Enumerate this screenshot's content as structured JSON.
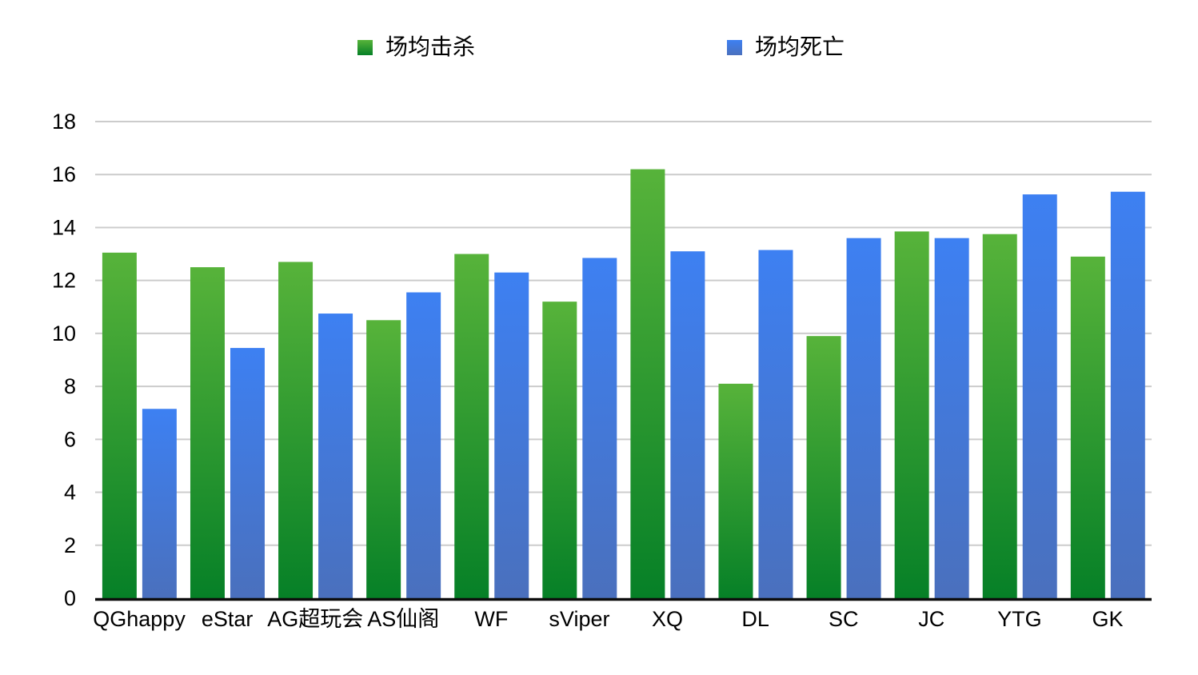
{
  "chart_data": {
    "type": "bar",
    "title": "",
    "xlabel": "",
    "ylabel": "",
    "categories": [
      "QGhappy",
      "eStar",
      "AG超玩会",
      "AS仙阁",
      "WF",
      "sViper",
      "XQ",
      "DL",
      "SC",
      "JC",
      "YTG",
      "GK"
    ],
    "series": [
      {
        "name": "场均击杀",
        "color_top": "#57b33a",
        "color_bottom": "#068027",
        "values": [
          13.05,
          12.5,
          12.7,
          10.5,
          13.0,
          11.2,
          16.2,
          8.1,
          9.9,
          13.85,
          13.75,
          12.9
        ]
      },
      {
        "name": "场均死亡",
        "color_top": "#3d80f2",
        "color_bottom": "#4a70bd",
        "values": [
          7.15,
          9.45,
          10.75,
          11.55,
          12.3,
          12.85,
          13.1,
          13.15,
          13.6,
          13.6,
          15.25,
          15.35
        ]
      }
    ],
    "ylim": [
      0,
      18
    ],
    "yticks": [
      0,
      2,
      4,
      6,
      8,
      10,
      12,
      14,
      16,
      18
    ],
    "ytick_labels": [
      "0",
      "2",
      "4",
      "6",
      "8",
      "10",
      "12",
      "14",
      "16",
      "18"
    ],
    "grid": true,
    "grid_color": "#cccccc",
    "axis_color": "#0d0d0d",
    "text_color": "#000000",
    "legend_position": "top"
  }
}
